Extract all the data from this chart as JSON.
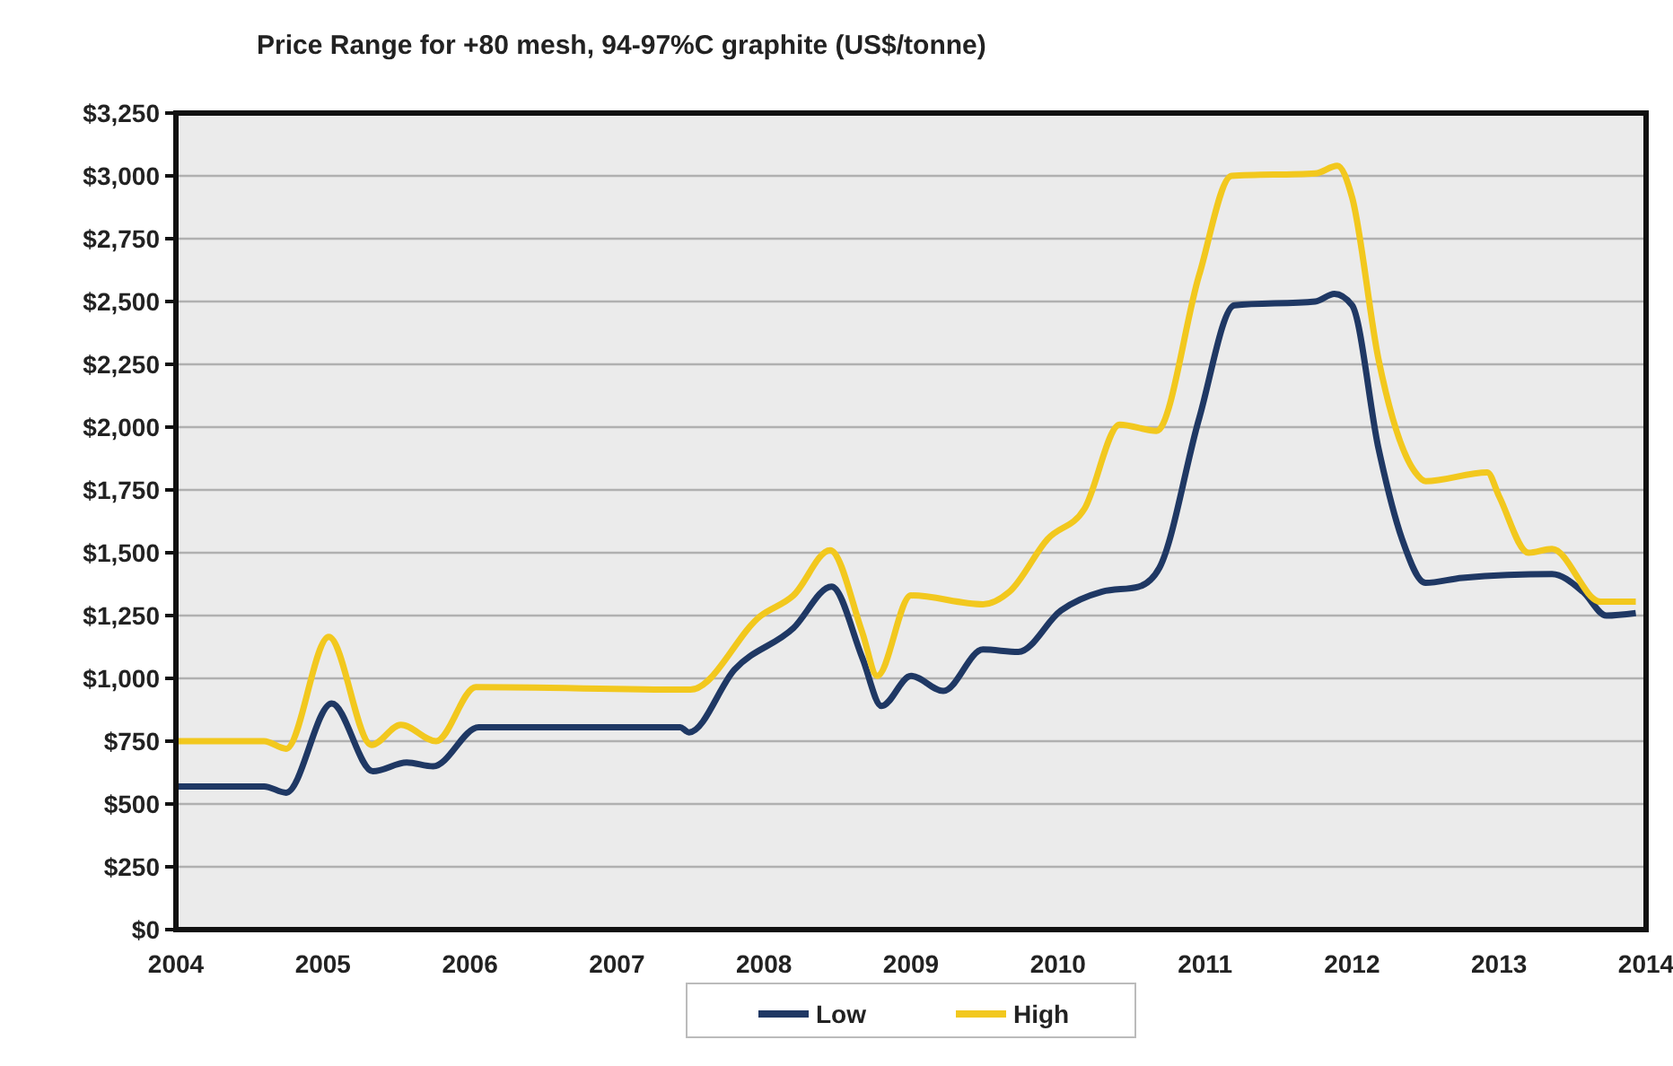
{
  "chart_data": {
    "type": "line",
    "title": "Price Range for +80 mesh, 94-97%C graphite (US$/tonne)",
    "series": [
      {
        "name": "Low",
        "color": "#1f3864",
        "x": [
          2004,
          2004.6,
          2004.75,
          2005.06,
          2005.34,
          2005.57,
          2005.75,
          2006.06,
          2007.43,
          2007.49,
          2007.8,
          2008.2,
          2008.46,
          2008.67,
          2008.8,
          2009.0,
          2009.22,
          2009.49,
          2009.73,
          2010.02,
          2010.3,
          2010.55,
          2010.69,
          2010.96,
          2011.2,
          2011.75,
          2011.88,
          2012.0,
          2012.18,
          2012.34,
          2012.5,
          2012.75,
          2013.36,
          2013.57,
          2013.73,
          2013.93
        ],
        "values": [
          570,
          570,
          545,
          900,
          630,
          665,
          650,
          805,
          805,
          785,
          1035,
          1200,
          1365,
          1080,
          890,
          1010,
          950,
          1115,
          1105,
          1270,
          1345,
          1365,
          1440,
          2035,
          2485,
          2500,
          2530,
          2485,
          1915,
          1555,
          1380,
          1400,
          1415,
          1345,
          1250,
          1260
        ]
      },
      {
        "name": "High",
        "color": "#f2c81e",
        "x": [
          2004,
          2004.6,
          2004.75,
          2005.04,
          2005.33,
          2005.53,
          2005.77,
          2006.04,
          2007.5,
          2007.98,
          2008.2,
          2008.45,
          2008.67,
          2008.77,
          2009.0,
          2009.49,
          2009.67,
          2009.93,
          2010.18,
          2010.42,
          2010.67,
          2010.96,
          2011.18,
          2011.75,
          2011.9,
          2012.0,
          2012.18,
          2012.43,
          2012.5,
          2012.92,
          2013.0,
          2013.2,
          2013.36,
          2013.69,
          2013.93
        ],
        "values": [
          750,
          750,
          720,
          1165,
          735,
          815,
          750,
          965,
          955,
          1250,
          1330,
          1510,
          1180,
          1010,
          1330,
          1295,
          1345,
          1555,
          1675,
          2010,
          1985,
          2605,
          3000,
          3010,
          3040,
          2915,
          2270,
          1820,
          1785,
          1820,
          1725,
          1500,
          1515,
          1305,
          1305
        ]
      }
    ],
    "xlim": [
      2004,
      2014
    ],
    "xticks": [
      2004,
      2005,
      2006,
      2007,
      2008,
      2009,
      2010,
      2011,
      2012,
      2013,
      2014
    ],
    "ylim": [
      0,
      3250
    ],
    "yticks": [
      {
        "value": 0,
        "label": "$0"
      },
      {
        "value": 250,
        "label": "$250"
      },
      {
        "value": 500,
        "label": "$500"
      },
      {
        "value": 750,
        "label": "$750"
      },
      {
        "value": 1000,
        "label": "$1,000"
      },
      {
        "value": 1250,
        "label": "$1,250"
      },
      {
        "value": 1500,
        "label": "$1,500"
      },
      {
        "value": 1750,
        "label": "$1,750"
      },
      {
        "value": 2000,
        "label": "$2,000"
      },
      {
        "value": 2250,
        "label": "$2,250"
      },
      {
        "value": 2500,
        "label": "$2,500"
      },
      {
        "value": 2750,
        "label": "$2,750"
      },
      {
        "value": 3000,
        "label": "$3,000"
      },
      {
        "value": 3250,
        "label": "$3,250"
      }
    ],
    "grid": "y",
    "legend": "bottom",
    "line_style": "solid",
    "marker": "none"
  }
}
